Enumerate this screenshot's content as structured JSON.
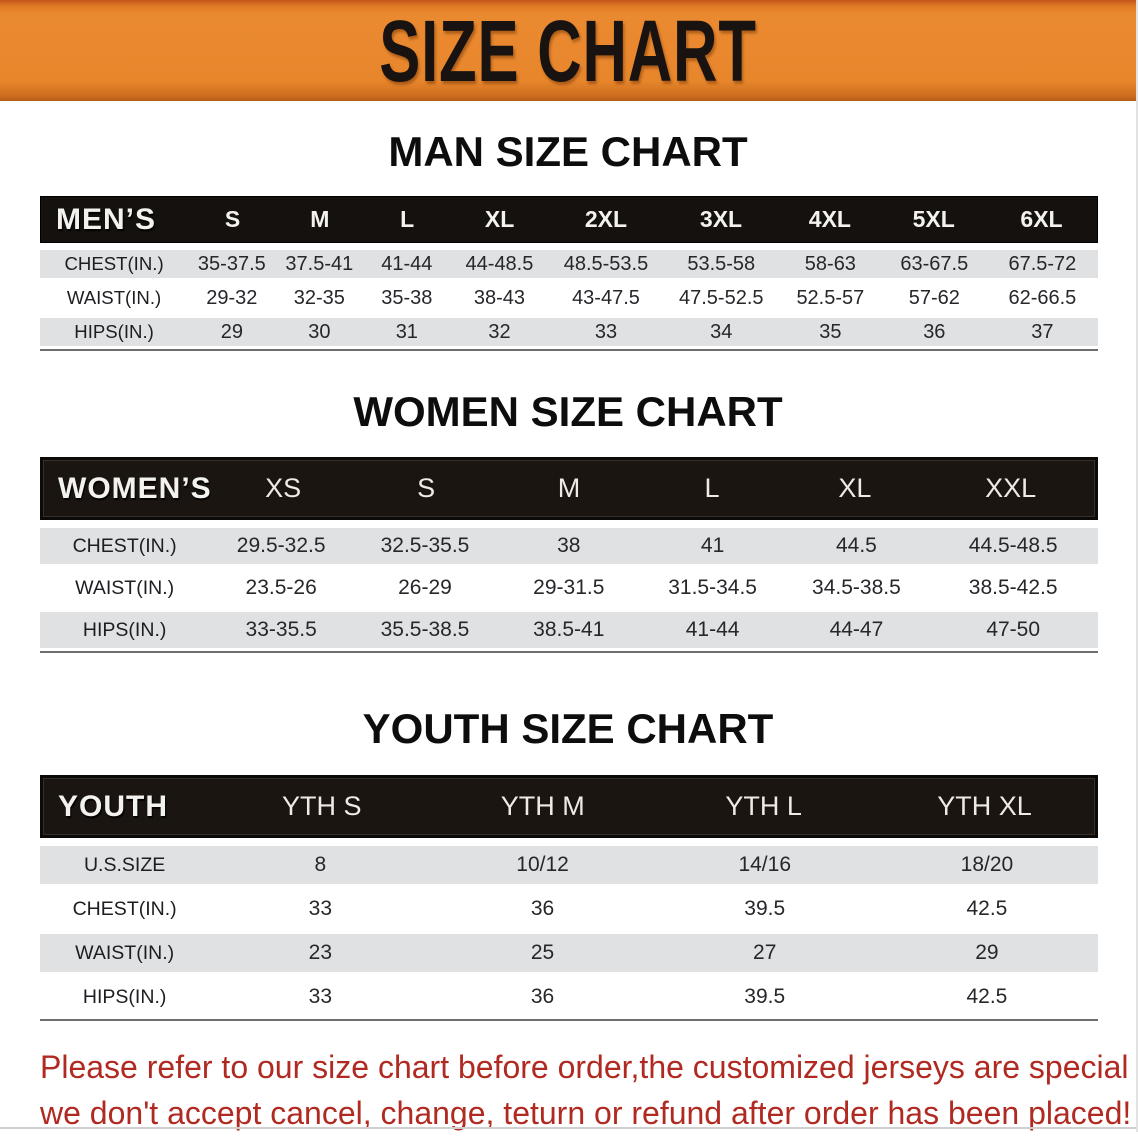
{
  "banner": {
    "title": "SIZE CHART",
    "bg_color": "#E8862C",
    "text_color": "#181310"
  },
  "colors": {
    "header_bar": "#17120E",
    "shaded_row": "#DFE1E2",
    "disclaimer_red": "#B12A22"
  },
  "tables": {
    "men": {
      "title": "MAN SIZE CHART",
      "header": [
        "MEN’S",
        "S",
        "M",
        "L",
        "XL",
        "2XL",
        "3XL",
        "4XL",
        "5XL",
        "6XL"
      ],
      "rows": [
        [
          "CHEST(IN.)",
          "35-37.5",
          "37.5-41",
          "41-44",
          "44-48.5",
          "48.5-53.5",
          "53.5-58",
          "58-63",
          "63-67.5",
          "67.5-72"
        ],
        [
          "WAIST(IN.)",
          "29-32",
          "32-35",
          "35-38",
          "38-43",
          "43-47.5",
          "47.5-52.5",
          "52.5-57",
          "57-62",
          "62-66.5"
        ],
        [
          "HIPS(IN.)",
          "29",
          "30",
          "31",
          "32",
          "33",
          "34",
          "35",
          "36",
          "37"
        ]
      ]
    },
    "women": {
      "title": "WOMEN SIZE CHART",
      "header": [
        "WOMEN’S",
        "XS",
        "S",
        "M",
        "L",
        "XL",
        "XXL"
      ],
      "rows": [
        [
          "CHEST(IN.)",
          "29.5-32.5",
          "32.5-35.5",
          "38",
          "41",
          "44.5",
          "44.5-48.5"
        ],
        [
          "WAIST(IN.)",
          "23.5-26",
          "26-29",
          "29-31.5",
          "31.5-34.5",
          "34.5-38.5",
          "38.5-42.5"
        ],
        [
          "HIPS(IN.)",
          "33-35.5",
          "35.5-38.5",
          "38.5-41",
          "41-44",
          "44-47",
          "47-50"
        ]
      ]
    },
    "youth": {
      "title": "YOUTH SIZE CHART",
      "header": [
        "YOUTH",
        "YTH S",
        "YTH M",
        "YTH L",
        "YTH XL"
      ],
      "rows": [
        [
          "U.S.SIZE",
          "8",
          "10/12",
          "14/16",
          "18/20"
        ],
        [
          "CHEST(IN.)",
          "33",
          "36",
          "39.5",
          "42.5"
        ],
        [
          "WAIST(IN.)",
          "23",
          "25",
          "27",
          "29"
        ],
        [
          "HIPS(IN.)",
          "33",
          "36",
          "39.5",
          "42.5"
        ]
      ]
    }
  },
  "disclaimer": {
    "line1": "Please refer to our size chart before order,the customized jerseys are special products,",
    "line2": "we don't accept cancel, change, teturn or refund after order has been placed!"
  }
}
